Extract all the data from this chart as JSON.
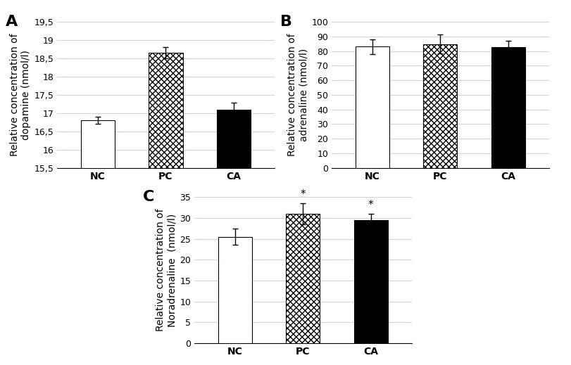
{
  "panel_A": {
    "label": "A",
    "categories": [
      "NC",
      "PC",
      "CA"
    ],
    "values": [
      16.8,
      18.65,
      17.1
    ],
    "errors": [
      0.1,
      0.15,
      0.18
    ],
    "ylim": [
      15.5,
      19.5
    ],
    "yticks": [
      15.5,
      16.0,
      16.5,
      17.0,
      17.5,
      18.0,
      18.5,
      19.0,
      19.5
    ],
    "ytick_labels": [
      "15,5",
      "16",
      "16,5",
      "17",
      "17,5",
      "18",
      "18,5",
      "19",
      "19,5"
    ],
    "ylabel": "Relative concentration of\ndopamine (nmol/l)",
    "bar_colors": [
      "white",
      "white",
      "black"
    ],
    "bar_hatches": [
      null,
      "//\\\\//\\\\",
      null
    ],
    "bar_edgecolors": [
      "black",
      "black",
      "black"
    ],
    "significance": [
      null,
      null,
      null
    ]
  },
  "panel_B": {
    "label": "B",
    "categories": [
      "NC",
      "PC",
      "CA"
    ],
    "values": [
      83.0,
      84.8,
      82.5
    ],
    "errors": [
      5.0,
      6.5,
      4.5
    ],
    "ylim": [
      0,
      100
    ],
    "yticks": [
      0,
      10,
      20,
      30,
      40,
      50,
      60,
      70,
      80,
      90,
      100
    ],
    "ytick_labels": [
      "0",
      "10",
      "20",
      "30",
      "40",
      "50",
      "60",
      "70",
      "80",
      "90",
      "100"
    ],
    "ylabel": "Relative concentration of\nadrenaline (nmol/l)",
    "bar_colors": [
      "white",
      "white",
      "black"
    ],
    "bar_hatches": [
      null,
      "//\\\\//\\\\",
      null
    ],
    "bar_edgecolors": [
      "black",
      "black",
      "black"
    ],
    "significance": [
      null,
      null,
      null
    ]
  },
  "panel_C": {
    "label": "C",
    "categories": [
      "NC",
      "PC",
      "CA"
    ],
    "values": [
      25.5,
      31.0,
      29.5
    ],
    "errors": [
      2.0,
      2.5,
      1.5
    ],
    "ylim": [
      0,
      35
    ],
    "yticks": [
      0,
      5,
      10,
      15,
      20,
      25,
      30,
      35
    ],
    "ytick_labels": [
      "0",
      "5",
      "10",
      "15",
      "20",
      "25",
      "30",
      "35"
    ],
    "ylabel": "Relative concentration of\nNoradrenaline  (nmol/l)",
    "bar_colors": [
      "white",
      "white",
      "black"
    ],
    "bar_hatches": [
      null,
      "//\\\\//\\\\",
      null
    ],
    "bar_edgecolors": [
      "black",
      "black",
      "black"
    ],
    "significance": [
      null,
      "*",
      "*"
    ]
  },
  "background_color": "#ffffff",
  "grid_color": "#c8d8e8",
  "label_fontsize": 10,
  "tick_fontsize": 9,
  "panel_label_fontsize": 16,
  "bar_width": 0.5
}
